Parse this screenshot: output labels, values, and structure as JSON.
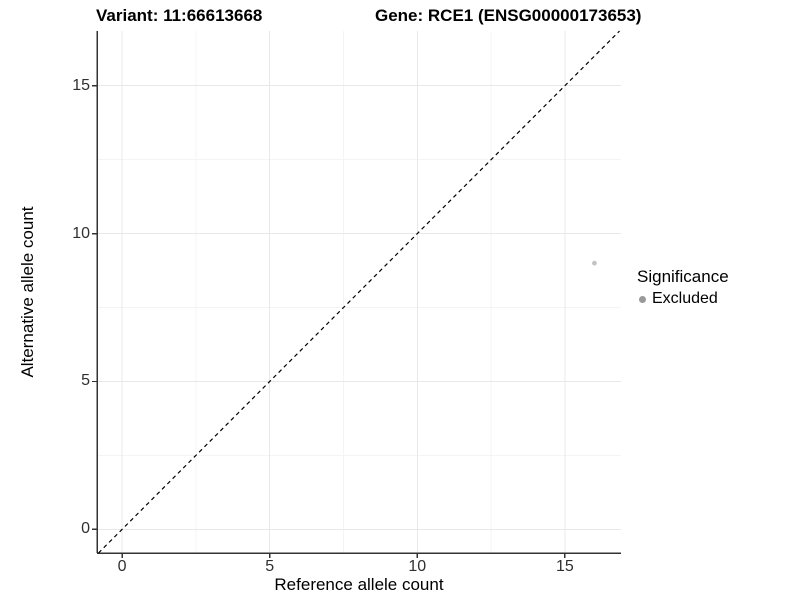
{
  "chart_data": {
    "type": "scatter",
    "titles": {
      "variant": "Variant: 11:66613668",
      "gene": "Gene: RCE1 (ENSG00000173653)"
    },
    "xlabel": "Reference allele count",
    "ylabel": "Alternative allele count",
    "xlim": [
      -0.85,
      16.9
    ],
    "ylim": [
      -0.8,
      16.85
    ],
    "xticks": [
      0,
      5,
      10,
      15
    ],
    "yticks": [
      0,
      5,
      10,
      15
    ],
    "xminor": [
      2.5,
      7.5,
      12.5
    ],
    "yminor": [
      2.5,
      7.5,
      12.5
    ],
    "grid": "major and minor light-grey gridlines on white panel",
    "reference_line": {
      "kind": "identity y = x",
      "style": "dashed",
      "color": "#000000"
    },
    "series": [
      {
        "name": "Excluded",
        "points": [
          {
            "x": 16,
            "y": 9
          }
        ],
        "color": "#c4c4c4",
        "marker_radius": 2.4
      }
    ],
    "legend": {
      "title": "Significance",
      "position": "right",
      "items": [
        {
          "label": "Excluded",
          "color": "#999999"
        }
      ]
    },
    "style": {
      "background": "#ffffff",
      "grid_major_color": "#e8e8e8",
      "grid_minor_color": "#f4f4f4",
      "axis_line_color": "#333333",
      "tick_color": "#333333",
      "tick_label_color": "#303030",
      "title_color": "#000000"
    }
  }
}
